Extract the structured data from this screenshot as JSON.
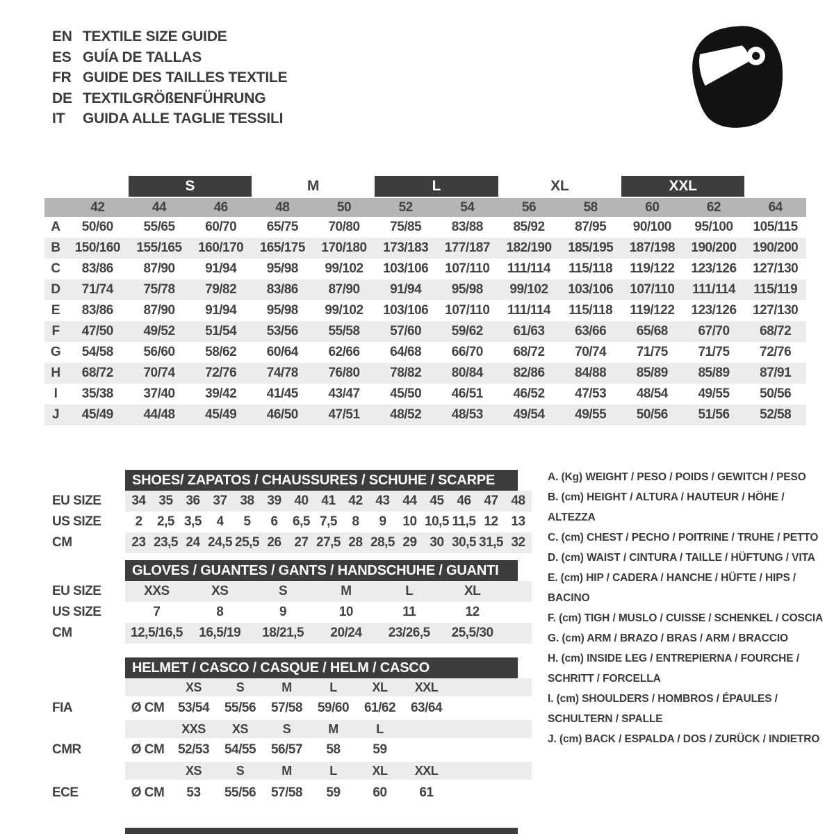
{
  "colors": {
    "dark_bar": "#3d3d3d",
    "header_band": "#b5b5b5",
    "row_stripe": "#ececec",
    "text": "#424242"
  },
  "languages": [
    {
      "code": "EN",
      "title": "TEXTILE SIZE GUIDE"
    },
    {
      "code": "ES",
      "title": "GUÍA DE TALLAS"
    },
    {
      "code": "FR",
      "title": "GUIDE DES TAILLES TEXTILE"
    },
    {
      "code": "DE",
      "title": "TEXTILGRÖßENFÜHRUNG"
    },
    {
      "code": "IT",
      "title": "GUIDA ALLE TAGLIE TESSILI"
    }
  ],
  "main_table": {
    "size_groups": [
      {
        "label": "S",
        "boxed": true,
        "start": 2
      },
      {
        "label": "M",
        "boxed": false,
        "start": 4
      },
      {
        "label": "L",
        "boxed": true,
        "start": 6
      },
      {
        "label": "XL",
        "boxed": false,
        "start": 8
      },
      {
        "label": "XXL",
        "boxed": true,
        "start": 10
      }
    ],
    "columns": [
      "42",
      "44",
      "46",
      "48",
      "50",
      "52",
      "54",
      "56",
      "58",
      "60",
      "62",
      "64"
    ],
    "rows": [
      {
        "label": "A",
        "values": [
          "50/60",
          "55/65",
          "60/70",
          "65/75",
          "70/80",
          "75/85",
          "83/88",
          "85/92",
          "87/95",
          "90/100",
          "95/100",
          "105/115"
        ]
      },
      {
        "label": "B",
        "values": [
          "150/160",
          "155/165",
          "160/170",
          "165/175",
          "170/180",
          "173/183",
          "177/187",
          "182/190",
          "185/195",
          "187/198",
          "190/200",
          "190/200"
        ]
      },
      {
        "label": "C",
        "values": [
          "83/86",
          "87/90",
          "91/94",
          "95/98",
          "99/102",
          "103/106",
          "107/110",
          "111/114",
          "115/118",
          "119/122",
          "123/126",
          "127/130"
        ]
      },
      {
        "label": "D",
        "values": [
          "71/74",
          "75/78",
          "79/82",
          "83/86",
          "87/90",
          "91/94",
          "95/98",
          "99/102",
          "103/106",
          "107/110",
          "111/114",
          "115/119"
        ]
      },
      {
        "label": "E",
        "values": [
          "83/86",
          "87/90",
          "91/94",
          "95/98",
          "99/102",
          "103/106",
          "107/110",
          "111/114",
          "115/118",
          "119/122",
          "123/126",
          "127/130"
        ]
      },
      {
        "label": "F",
        "values": [
          "47/50",
          "49/52",
          "51/54",
          "53/56",
          "55/58",
          "57/60",
          "59/62",
          "61/63",
          "63/66",
          "65/68",
          "67/70",
          "68/72"
        ]
      },
      {
        "label": "G",
        "values": [
          "54/58",
          "56/60",
          "58/62",
          "60/64",
          "62/66",
          "64/68",
          "66/70",
          "68/72",
          "70/74",
          "71/75",
          "71/75",
          "72/76"
        ]
      },
      {
        "label": "H",
        "values": [
          "68/72",
          "70/74",
          "72/76",
          "74/78",
          "76/80",
          "78/82",
          "80/84",
          "82/86",
          "84/88",
          "85/89",
          "85/89",
          "87/91"
        ]
      },
      {
        "label": "I",
        "values": [
          "35/38",
          "37/40",
          "39/42",
          "41/45",
          "43/47",
          "45/50",
          "46/51",
          "46/52",
          "47/53",
          "48/54",
          "49/55",
          "50/56"
        ]
      },
      {
        "label": "J",
        "values": [
          "45/49",
          "44/48",
          "45/49",
          "46/50",
          "47/51",
          "48/52",
          "48/53",
          "49/54",
          "49/55",
          "50/56",
          "51/56",
          "52/58"
        ]
      }
    ]
  },
  "shoes": {
    "title": "SHOES/ ZAPATOS / CHAUSSURES / SCHUHE / SCARPE",
    "rows": [
      {
        "label": "EU SIZE",
        "values": [
          "34",
          "35",
          "36",
          "37",
          "38",
          "39",
          "40",
          "41",
          "42",
          "43",
          "44",
          "45",
          "46",
          "47",
          "48"
        ]
      },
      {
        "label": "US SIZE",
        "values": [
          "2",
          "2,5",
          "3,5",
          "4",
          "5",
          "6",
          "6,5",
          "7,5",
          "8",
          "9",
          "10",
          "10,5",
          "11,5",
          "12",
          "13"
        ]
      },
      {
        "label": "CM",
        "values": [
          "23",
          "23,5",
          "24",
          "24,5",
          "25,5",
          "26",
          "27",
          "27,5",
          "28",
          "28,5",
          "29",
          "30",
          "30,5",
          "31,5",
          "32"
        ]
      }
    ]
  },
  "gloves": {
    "title": "GLOVES / GUANTES / GANTS / HANDSCHUHE / GUANTI",
    "rows": [
      {
        "label": "EU SIZE",
        "values": [
          "XXS",
          "XS",
          "S",
          "M",
          "L",
          "XL"
        ]
      },
      {
        "label": "US SIZE",
        "values": [
          "7",
          "8",
          "9",
          "10",
          "11",
          "12"
        ]
      },
      {
        "label": "CM",
        "values": [
          "12,5/16,5",
          "16,5/19",
          "18/21,5",
          "20/24",
          "23/26,5",
          "25,5/30"
        ]
      }
    ]
  },
  "helmet_table": {
    "title": "HELMET / CASCO / CASQUE / HELM / CASCO",
    "rows": [
      {
        "type": "sizes",
        "values": [
          "XS",
          "S",
          "M",
          "L",
          "XL",
          "XXL"
        ]
      },
      {
        "type": "data",
        "label": "FIA",
        "unit": "Ø CM",
        "values": [
          "53/54",
          "55/56",
          "57/58",
          "59/60",
          "61/62",
          "63/64"
        ]
      },
      {
        "type": "sizes",
        "values": [
          "XXS",
          "XS",
          "S",
          "M",
          "L"
        ]
      },
      {
        "type": "data",
        "label": "CMR",
        "unit": "Ø CM",
        "values": [
          "52/53",
          "54/55",
          "56/57",
          "58",
          "59"
        ]
      },
      {
        "type": "sizes",
        "values": [
          "XS",
          "S",
          "M",
          "L",
          "XL",
          "XXL"
        ]
      },
      {
        "type": "data",
        "label": "ECE",
        "unit": "Ø CM",
        "values": [
          "53",
          "55/56",
          "57/58",
          "59",
          "60",
          "61"
        ]
      }
    ]
  },
  "legend": {
    "items": [
      {
        "key": "A.",
        "unit": "(Kg)",
        "text": "WEIGHT / PESO / POIDS / GEWITCH / PESO"
      },
      {
        "key": "B.",
        "unit": "(cm)",
        "text": "HEIGHT / ALTURA / HAUTEUR / HÖHE / ALTEZZA"
      },
      {
        "key": "C.",
        "unit": "(cm)",
        "text": "CHEST / PECHO / POITRINE / TRUHE / PETTO"
      },
      {
        "key": "D.",
        "unit": "(cm)",
        "text": "WAIST / CINTURA / TAILLE / HÜFTUNG / VITA"
      },
      {
        "key": "E.",
        "unit": "(cm)",
        "text": "HIP / CADERA / HANCHE / HÜFTE / HIPS /  BACINO"
      },
      {
        "key": "F.",
        "unit": "(cm)",
        "text": "TIGH / MUSLO / CUISSE / SCHENKEL / COSCIA"
      },
      {
        "key": "G.",
        "unit": "(cm)",
        "text": "ARM  / BRAZO / BRAS / ARM / BRACCIO"
      },
      {
        "key": "H.",
        "unit": "(cm)",
        "text": "INSIDE LEG / ENTREPIERNA / FOURCHE / SCHRITT / FORCELLA"
      },
      {
        "key": "I.",
        "unit": "(cm)",
        "text": "SHOULDERS / HOMBROS / ÉPAULES / SCHULTERN / SPALLE"
      },
      {
        "key": "J.",
        "unit": "(cm)",
        "text": "BACK / ESPALDA / DOS / ZURÜCK / INDIETRO"
      }
    ]
  }
}
